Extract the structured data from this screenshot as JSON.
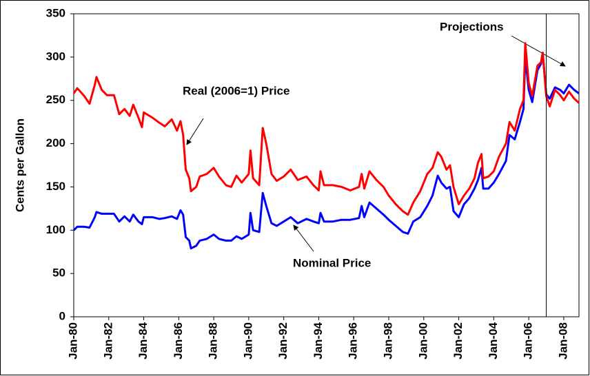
{
  "chart_data": {
    "type": "line",
    "y_label": "Cents per Gallon",
    "annotations": [
      "Projections"
    ],
    "projection_start": 2007,
    "x": [
      1980.0,
      1980.2,
      1980.6,
      1980.9,
      1981.2,
      1981.3,
      1981.6,
      1981.9,
      1982.3,
      1982.6,
      1982.9,
      1983.2,
      1983.4,
      1983.7,
      1983.9,
      1984.0,
      1984.5,
      1984.9,
      1985.2,
      1985.6,
      1985.9,
      1986.1,
      1986.25,
      1986.4,
      1986.6,
      1986.7,
      1987.0,
      1987.2,
      1987.6,
      1988.0,
      1988.3,
      1988.7,
      1989.0,
      1989.3,
      1989.6,
      1990.0,
      1990.1,
      1990.25,
      1990.6,
      1990.8,
      1991.0,
      1991.3,
      1991.6,
      1992.0,
      1992.4,
      1992.8,
      1993.3,
      1993.7,
      1994.0,
      1994.1,
      1994.3,
      1994.8,
      1995.3,
      1995.8,
      1996.3,
      1996.45,
      1996.6,
      1996.9,
      1997.3,
      1997.7,
      1998.0,
      1998.4,
      1998.8,
      1999.1,
      1999.4,
      1999.8,
      2000.2,
      2000.5,
      2000.8,
      2001.0,
      2001.3,
      2001.5,
      2001.7,
      2002.0,
      2002.3,
      2002.6,
      2002.9,
      2003.1,
      2003.3,
      2003.4,
      2003.7,
      2004.0,
      2004.3,
      2004.7,
      2004.9,
      2005.2,
      2005.5,
      2005.7,
      2005.8,
      2006.0,
      2006.2,
      2006.5,
      2006.7,
      2006.8,
      2007.0,
      2007.2,
      2007.5,
      2007.8,
      2008.0,
      2008.3,
      2008.6,
      2008.87
    ],
    "series": [
      {
        "name": "Real (2006=1) Price",
        "color": "#ff0000",
        "values": [
          258,
          264,
          255,
          246,
          268,
          277,
          262,
          256,
          256,
          234,
          240,
          232,
          245,
          230,
          219,
          236,
          230,
          224,
          220,
          228,
          215,
          226,
          210,
          170,
          160,
          145,
          150,
          162,
          165,
          172,
          162,
          152,
          150,
          163,
          155,
          165,
          192,
          160,
          152,
          218,
          200,
          165,
          157,
          162,
          170,
          158,
          162,
          152,
          146,
          168,
          152,
          152,
          150,
          146,
          150,
          165,
          148,
          168,
          158,
          150,
          140,
          130,
          122,
          118,
          132,
          145,
          165,
          172,
          190,
          185,
          170,
          175,
          150,
          130,
          140,
          148,
          160,
          178,
          188,
          160,
          162,
          168,
          185,
          200,
          225,
          215,
          240,
          250,
          316,
          270,
          255,
          290,
          294,
          305,
          255,
          243,
          262,
          256,
          250,
          260,
          252,
          247
        ]
      },
      {
        "name": "Nominal Price",
        "color": "#0000ff",
        "values": [
          100,
          104,
          104,
          103,
          115,
          121,
          119,
          119,
          119,
          110,
          116,
          110,
          118,
          110,
          107,
          115,
          115,
          113,
          114,
          116,
          113,
          123,
          118,
          92,
          88,
          79,
          82,
          88,
          90,
          95,
          90,
          88,
          88,
          93,
          90,
          95,
          120,
          100,
          98,
          143,
          128,
          108,
          105,
          110,
          115,
          108,
          113,
          110,
          108,
          120,
          110,
          110,
          112,
          112,
          114,
          128,
          115,
          132,
          125,
          118,
          112,
          105,
          98,
          96,
          110,
          115,
          128,
          140,
          163,
          155,
          148,
          150,
          122,
          115,
          130,
          137,
          148,
          158,
          172,
          148,
          148,
          155,
          165,
          180,
          210,
          205,
          225,
          240,
          300,
          262,
          248,
          285,
          292,
          305,
          257,
          252,
          265,
          262,
          258,
          268,
          262,
          258
        ]
      }
    ],
    "xlim": [
      1980,
      2008.87
    ],
    "xticks": [
      {
        "value": 1980,
        "label": "Jan-80"
      },
      {
        "value": 1982,
        "label": "Jan-82"
      },
      {
        "value": 1984,
        "label": "Jan-84"
      },
      {
        "value": 1986,
        "label": "Jan-86"
      },
      {
        "value": 1988,
        "label": "Jan-88"
      },
      {
        "value": 1990,
        "label": "Jan-90"
      },
      {
        "value": 1992,
        "label": "Jan-92"
      },
      {
        "value": 1994,
        "label": "Jan-94"
      },
      {
        "value": 1996,
        "label": "Jan-96"
      },
      {
        "value": 1998,
        "label": "Jan-98"
      },
      {
        "value": 2000,
        "label": "Jan-00"
      },
      {
        "value": 2002,
        "label": "Jan-02"
      },
      {
        "value": 2004,
        "label": "Jan-04"
      },
      {
        "value": 2006,
        "label": "Jan-06"
      },
      {
        "value": 2008,
        "label": "Jan-08"
      }
    ],
    "ylim": [
      0,
      350
    ],
    "yticks": [
      0,
      50,
      100,
      150,
      200,
      250,
      300,
      350
    ]
  }
}
